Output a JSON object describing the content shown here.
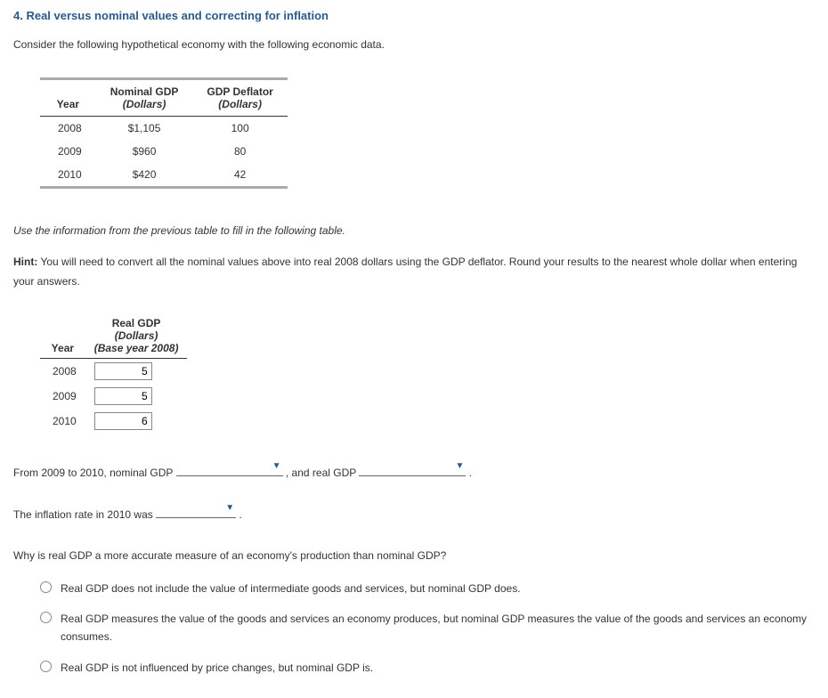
{
  "heading": "4. Real versus nominal values and correcting for inflation",
  "intro": "Consider the following hypothetical economy with the following economic data.",
  "table1": {
    "headers": {
      "year": "Year",
      "nominal_gdp_line1": "Nominal GDP",
      "nominal_gdp_line2": "(Dollars)",
      "deflator_line1": "GDP Deflator",
      "deflator_line2": "(Dollars)"
    },
    "rows": [
      {
        "year": "2008",
        "nominal_gdp": "$1,105",
        "deflator": "100"
      },
      {
        "year": "2009",
        "nominal_gdp": "$960",
        "deflator": "80"
      },
      {
        "year": "2010",
        "nominal_gdp": "$420",
        "deflator": "42"
      }
    ]
  },
  "instruction": "Use the information from the previous table to fill in the following table.",
  "hint": {
    "label": "Hint:",
    "text": " You will need to convert all the nominal values above into real 2008 dollars using the GDP deflator. Round your results to the nearest whole dollar when entering your answers."
  },
  "table2": {
    "headers": {
      "year": "Year",
      "real_gdp_line1": "Real GDP",
      "real_gdp_line2": "(Dollars)",
      "real_gdp_line3": "(Base year 2008)"
    },
    "rows": [
      {
        "year": "2008",
        "value": "5"
      },
      {
        "year": "2009",
        "value": "5"
      },
      {
        "year": "2010",
        "value": "6"
      }
    ]
  },
  "sentences": {
    "s1_part1": "From 2009 to 2010, nominal GDP ",
    "s1_part2": " , and real GDP ",
    "s1_part3": " .",
    "s2_part1": "The inflation rate in 2010 was ",
    "s2_part2": " ."
  },
  "question": "Why is real GDP a more accurate measure of an economy's production than nominal GDP?",
  "options": [
    "Real GDP does not include the value of intermediate goods and services, but nominal GDP does.",
    "Real GDP measures the value of the goods and services an economy produces, but nominal GDP measures the value of the goods and services an economy consumes.",
    "Real GDP is not influenced by price changes, but nominal GDP is."
  ]
}
